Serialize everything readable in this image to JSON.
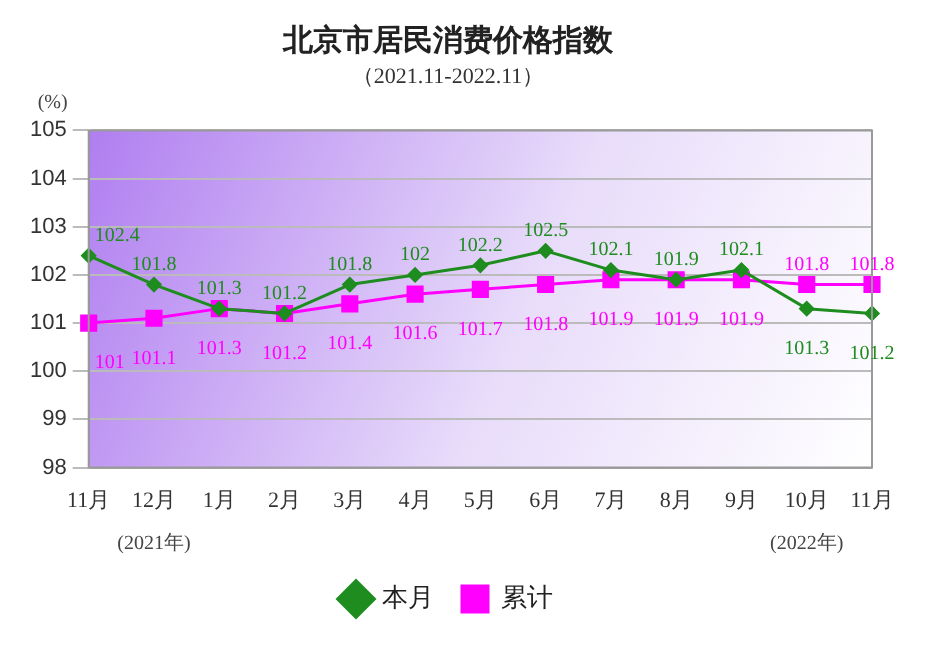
{
  "chart_data": {
    "type": "line",
    "title": "北京市居民消费价格指数",
    "subtitle": "（2021.11-2022.11）",
    "ylabel": "(%)",
    "categories": [
      "11月",
      "12月",
      "1月",
      "2月",
      "3月",
      "4月",
      "5月",
      "6月",
      "7月",
      "8月",
      "9月",
      "10月",
      "11月"
    ],
    "series": [
      {
        "name": "本月",
        "color": "#1e8c1e",
        "marker": "diamond",
        "values": [
          102.4,
          101.8,
          101.3,
          101.2,
          101.8,
          102,
          102.2,
          102.5,
          102.1,
          101.9,
          102.1,
          101.3,
          101.2
        ]
      },
      {
        "name": "累计",
        "color": "#ff00ff",
        "marker": "square",
        "values": [
          101,
          101.1,
          101.3,
          101.2,
          101.4,
          101.6,
          101.7,
          101.8,
          101.9,
          101.9,
          101.9,
          101.8,
          101.8
        ]
      }
    ],
    "ylim": [
      98,
      105
    ],
    "yticks": [
      98,
      99,
      100,
      101,
      102,
      103,
      104,
      105
    ],
    "grid": "y",
    "legend": "bottom",
    "data_labels": true,
    "annotations": [
      "(2021年)",
      "(2022年)"
    ]
  }
}
